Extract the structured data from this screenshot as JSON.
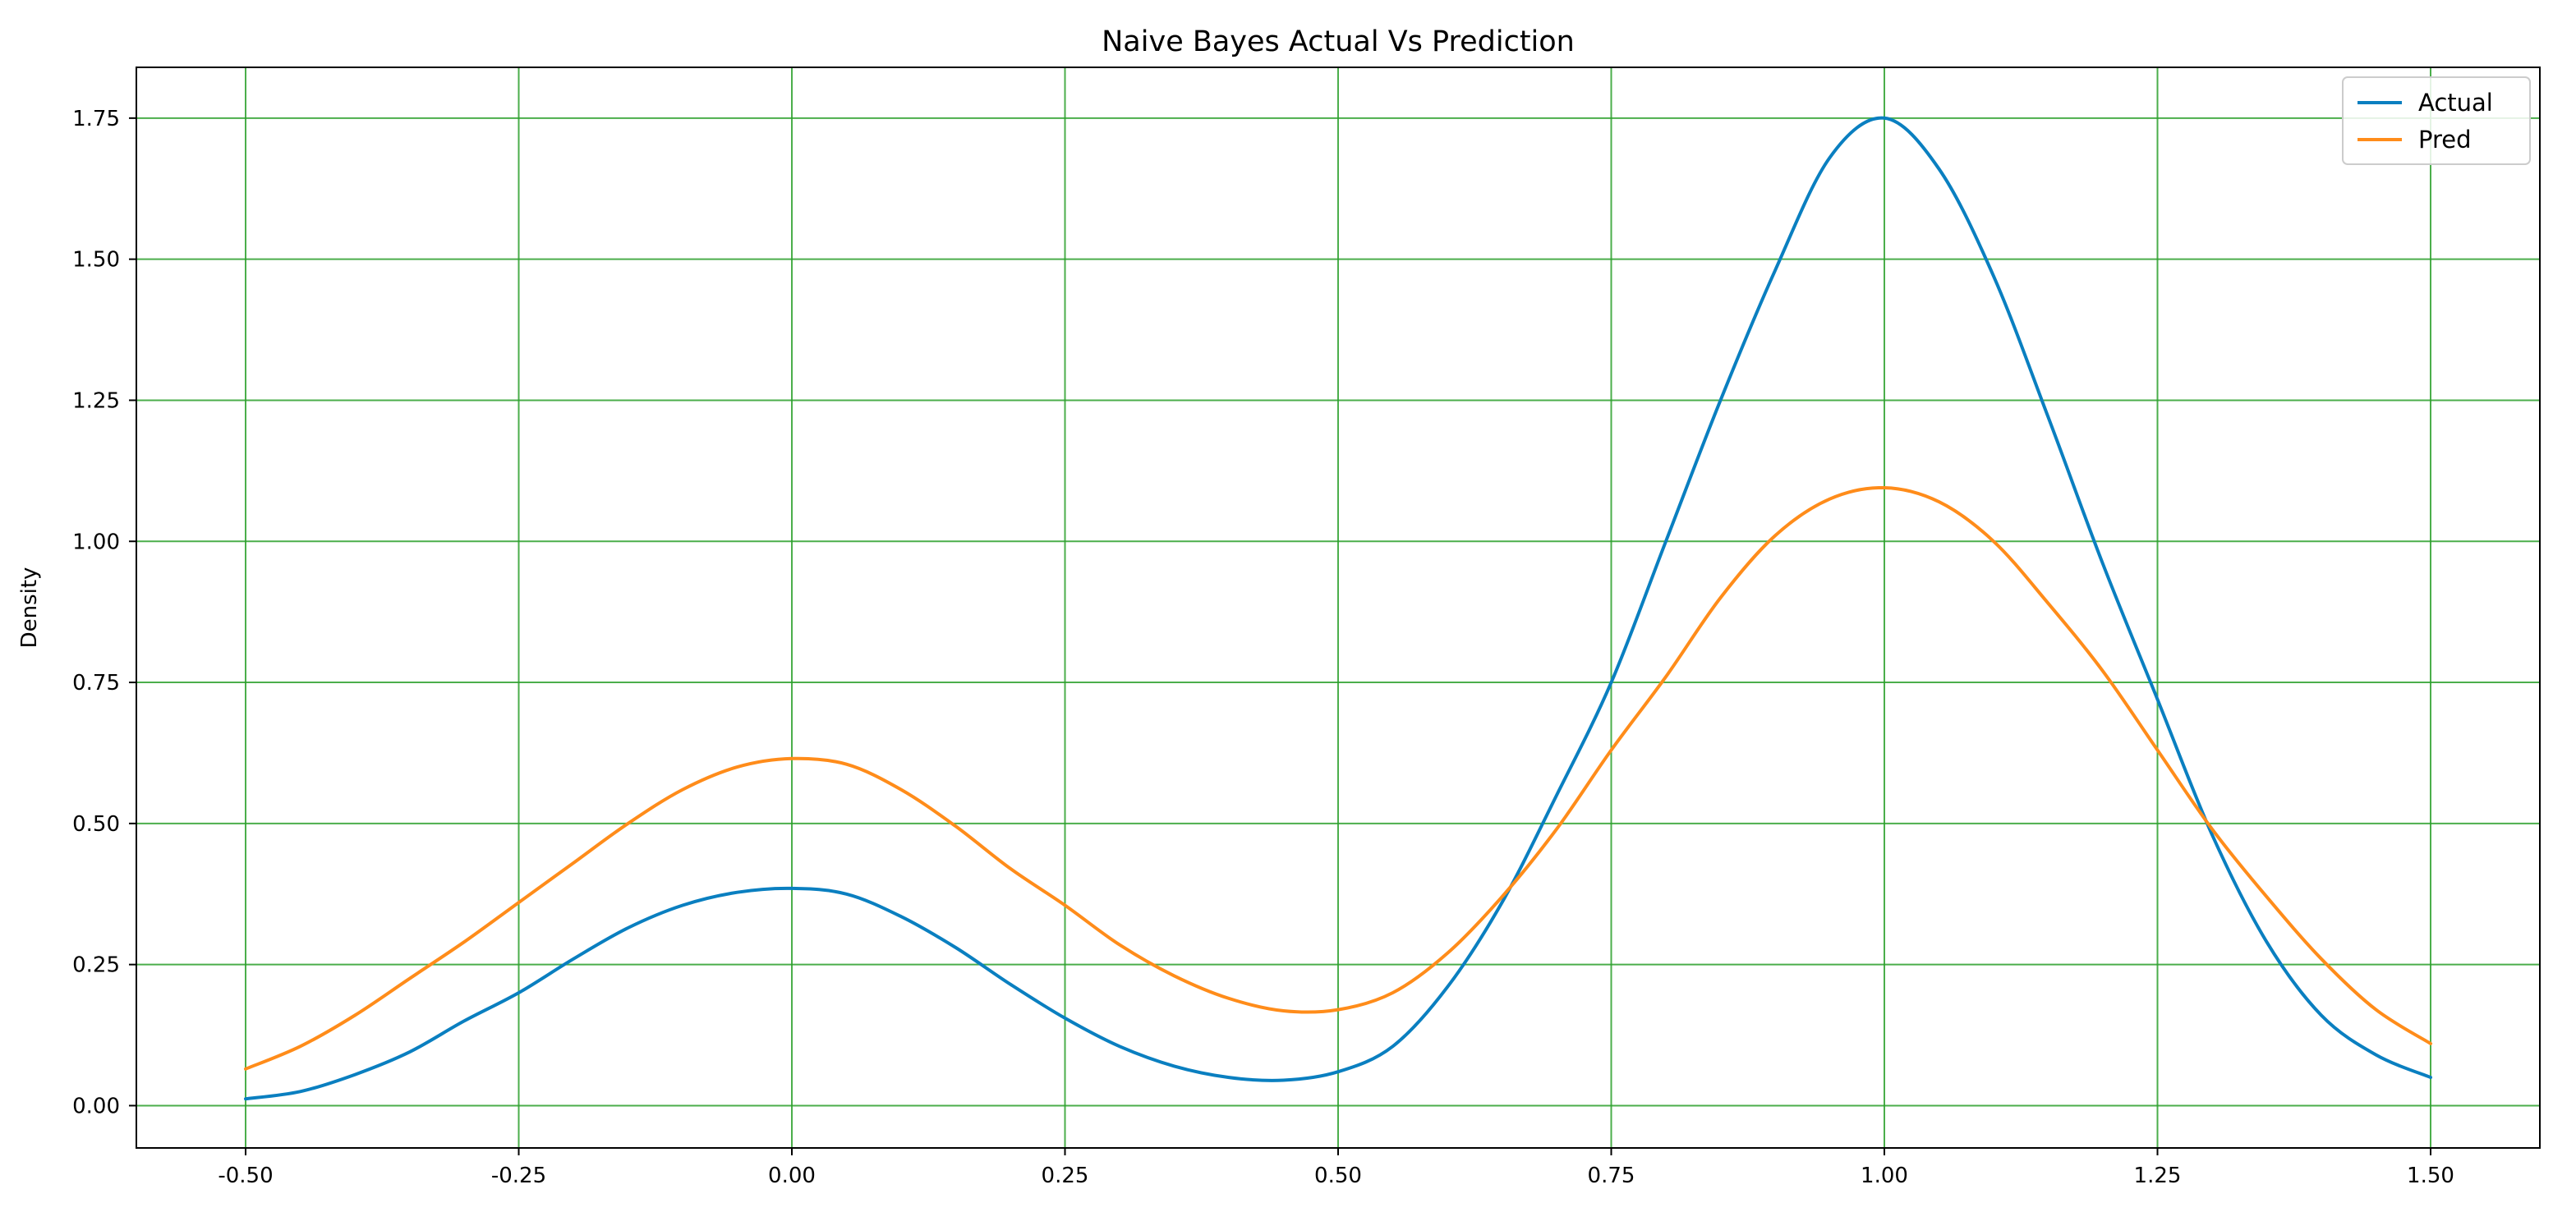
{
  "chart_data": {
    "type": "line",
    "title": "Naive Bayes Actual Vs Prediction",
    "xlabel": "",
    "ylabel": "Density",
    "xlim": [
      -0.6,
      1.6
    ],
    "ylim": [
      -0.075,
      1.84
    ],
    "xticks": [
      -0.5,
      -0.25,
      0.0,
      0.25,
      0.5,
      0.75,
      1.0,
      1.25,
      1.5
    ],
    "xtick_labels": [
      "-0.50",
      "-0.25",
      "0.00",
      "0.25",
      "0.50",
      "0.75",
      "1.00",
      "1.25",
      "1.50"
    ],
    "yticks": [
      0.0,
      0.25,
      0.5,
      0.75,
      1.0,
      1.25,
      1.5,
      1.75
    ],
    "ytick_labels": [
      "0.00",
      "0.25",
      "0.50",
      "0.75",
      "1.00",
      "1.25",
      "1.50",
      "1.75"
    ],
    "grid": true,
    "grid_color": "#2ca02c",
    "legend_position": "top-right",
    "series": [
      {
        "name": "Actual",
        "color": "#0a7fc0",
        "x": [
          -0.5,
          -0.45,
          -0.4,
          -0.35,
          -0.3,
          -0.25,
          -0.2,
          -0.15,
          -0.1,
          -0.05,
          0.0,
          0.05,
          0.1,
          0.15,
          0.2,
          0.25,
          0.3,
          0.35,
          0.4,
          0.45,
          0.5,
          0.55,
          0.6,
          0.65,
          0.7,
          0.75,
          0.8,
          0.85,
          0.9,
          0.95,
          1.0,
          1.05,
          1.1,
          1.15,
          1.2,
          1.25,
          1.3,
          1.35,
          1.4,
          1.45,
          1.5
        ],
        "y": [
          0.012,
          0.025,
          0.055,
          0.095,
          0.15,
          0.2,
          0.26,
          0.315,
          0.355,
          0.378,
          0.385,
          0.375,
          0.335,
          0.28,
          0.215,
          0.155,
          0.105,
          0.07,
          0.05,
          0.045,
          0.06,
          0.105,
          0.21,
          0.36,
          0.55,
          0.75,
          1.0,
          1.25,
          1.48,
          1.68,
          1.75,
          1.66,
          1.47,
          1.22,
          0.96,
          0.72,
          0.48,
          0.29,
          0.16,
          0.09,
          0.05
        ]
      },
      {
        "name": "Pred",
        "color": "#ff8c1a",
        "x": [
          -0.5,
          -0.45,
          -0.4,
          -0.35,
          -0.3,
          -0.25,
          -0.2,
          -0.15,
          -0.1,
          -0.05,
          0.0,
          0.05,
          0.1,
          0.15,
          0.2,
          0.25,
          0.3,
          0.35,
          0.4,
          0.45,
          0.5,
          0.55,
          0.6,
          0.65,
          0.7,
          0.75,
          0.8,
          0.85,
          0.9,
          0.95,
          1.0,
          1.05,
          1.1,
          1.15,
          1.2,
          1.25,
          1.3,
          1.35,
          1.4,
          1.45,
          1.5
        ],
        "y": [
          0.065,
          0.105,
          0.16,
          0.225,
          0.29,
          0.36,
          0.43,
          0.5,
          0.56,
          0.6,
          0.615,
          0.605,
          0.56,
          0.495,
          0.42,
          0.355,
          0.285,
          0.23,
          0.19,
          0.168,
          0.17,
          0.2,
          0.27,
          0.37,
          0.49,
          0.63,
          0.76,
          0.9,
          1.01,
          1.075,
          1.095,
          1.07,
          1.0,
          0.89,
          0.77,
          0.63,
          0.49,
          0.37,
          0.26,
          0.17,
          0.11
        ]
      }
    ]
  }
}
